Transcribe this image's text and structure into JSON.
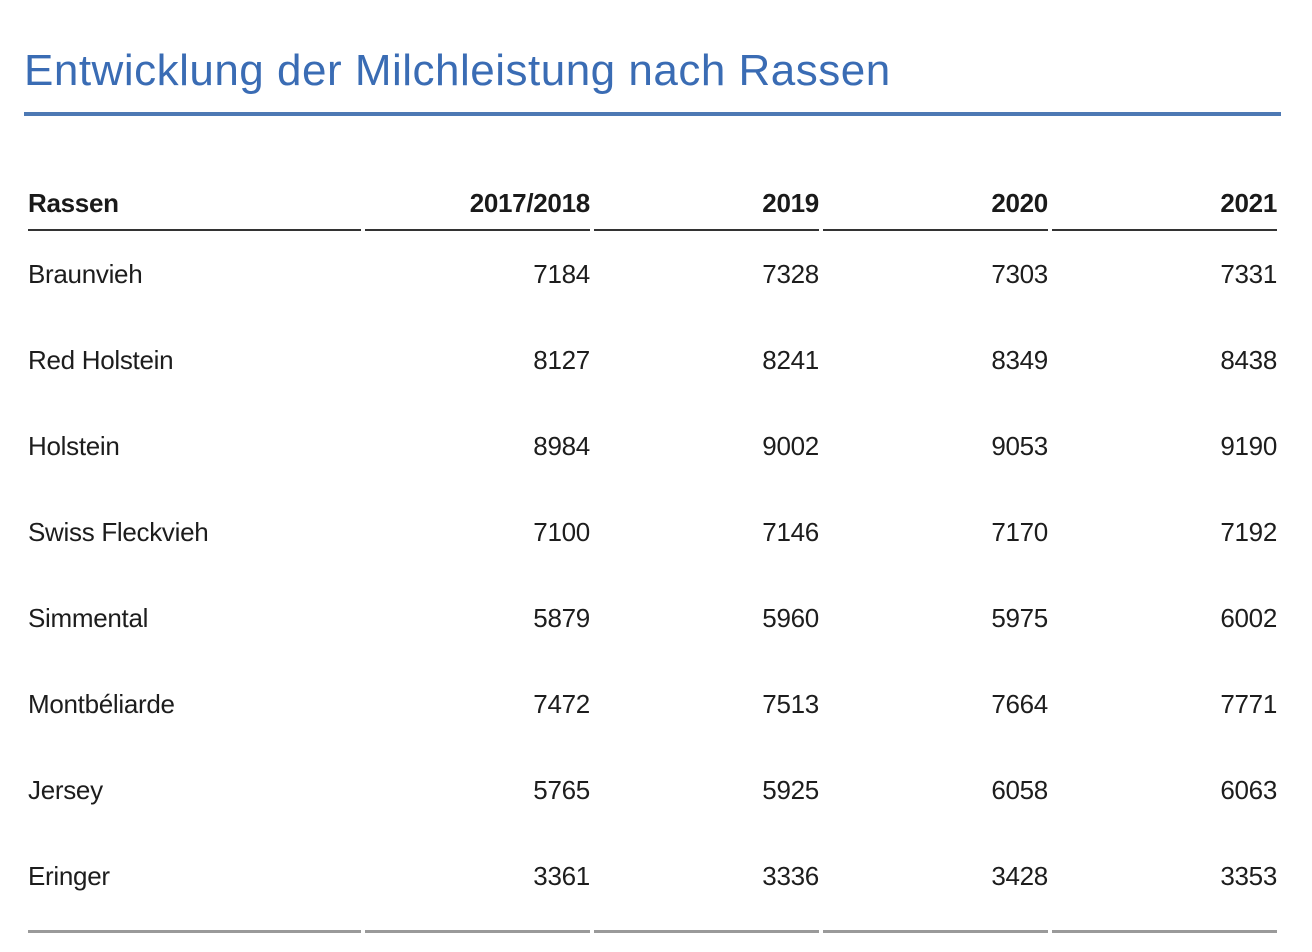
{
  "page": {
    "title": "Entwicklung der Milchleistung nach Rassen",
    "title_color": "#3a6cb4",
    "title_rule_color": "#4d79b4",
    "header_rule_color": "#333333",
    "bottom_rule_color": "#9a9a9a"
  },
  "table": {
    "columns": [
      "Rassen",
      "2017/2018",
      "2019",
      "2020",
      "2021"
    ],
    "rows": [
      {
        "name": "Braunvieh",
        "values": [
          "7184",
          "7328",
          "7303",
          "7331"
        ]
      },
      {
        "name": "Red Holstein",
        "values": [
          "8127",
          "8241",
          "8349",
          "8438"
        ]
      },
      {
        "name": "Holstein",
        "values": [
          "8984",
          "9002",
          "9053",
          "9190"
        ]
      },
      {
        "name": "Swiss Fleckvieh",
        "values": [
          "7100",
          "7146",
          "7170",
          "7192"
        ]
      },
      {
        "name": "Simmental",
        "values": [
          "5879",
          "5960",
          "5975",
          "6002"
        ]
      },
      {
        "name": "Montbéliarde",
        "values": [
          "7472",
          "7513",
          "7664",
          "7771"
        ]
      },
      {
        "name": "Jersey",
        "values": [
          "5765",
          "5925",
          "6058",
          "6063"
        ]
      },
      {
        "name": "Eringer",
        "values": [
          "3361",
          "3336",
          "3428",
          "3353"
        ]
      }
    ]
  },
  "chart_data": {
    "type": "table",
    "title": "Entwicklung der Milchleistung nach Rassen",
    "categories": [
      "2017/2018",
      "2019",
      "2020",
      "2021"
    ],
    "row_header_label": "Rassen",
    "series": [
      {
        "name": "Braunvieh",
        "values": [
          7184,
          7328,
          7303,
          7331
        ]
      },
      {
        "name": "Red Holstein",
        "values": [
          8127,
          8241,
          8349,
          8438
        ]
      },
      {
        "name": "Holstein",
        "values": [
          8984,
          9002,
          9053,
          9190
        ]
      },
      {
        "name": "Swiss Fleckvieh",
        "values": [
          7100,
          7146,
          7170,
          7192
        ]
      },
      {
        "name": "Simmental",
        "values": [
          5879,
          5960,
          5975,
          6002
        ]
      },
      {
        "name": "Montbéliarde",
        "values": [
          7472,
          7513,
          7664,
          7771
        ]
      },
      {
        "name": "Jersey",
        "values": [
          5765,
          5925,
          6058,
          6063
        ]
      },
      {
        "name": "Eringer",
        "values": [
          3361,
          3336,
          3428,
          3353
        ]
      }
    ]
  }
}
